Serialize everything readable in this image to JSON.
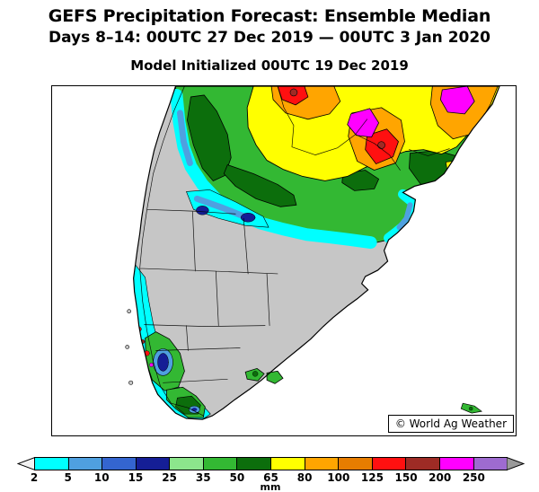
{
  "header": {
    "title": "GEFS Precipitation Forecast: Ensemble Median",
    "subtitle": "Days 8–14: 00UTC 27 Dec 2019 — 00UTC 3 Jan 2020",
    "init_line": "Model Initialized 00UTC 19 Dec 2019"
  },
  "map": {
    "region": "Southern South America",
    "watermark": "© World Ag Weather",
    "land_color": "#C6C6C6",
    "ocean_color": "#FFFFFF",
    "coast_color": "#000000"
  },
  "legend": {
    "unit": "mm",
    "values": [
      2,
      5,
      10,
      15,
      25,
      35,
      50,
      65,
      80,
      100,
      125,
      150,
      200,
      250
    ],
    "colors": [
      "#00FFFF",
      "#4FA0E0",
      "#3465D0",
      "#151E96",
      "#8CE68C",
      "#33B833",
      "#0C6E0C",
      "#FFFF00",
      "#FFA500",
      "#E77D00",
      "#FF1010",
      "#9E2B25",
      "#FF00FF",
      "#9E6BD0"
    ],
    "under_arrow_color": "#F2F2F2",
    "over_arrow_color": "#9A9A9A"
  }
}
